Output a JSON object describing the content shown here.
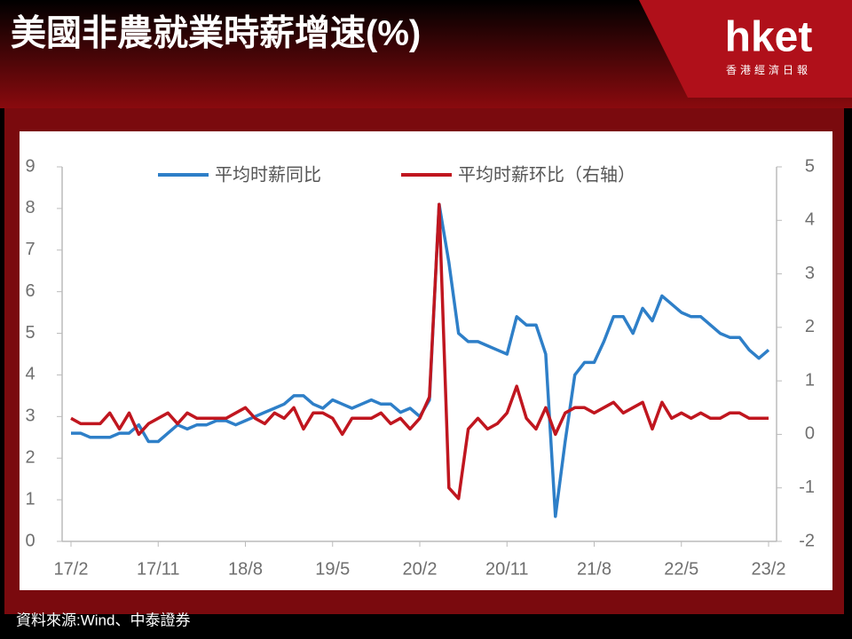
{
  "brand": {
    "name": "hket",
    "subtitle": "香港經濟日報"
  },
  "chart_data": {
    "type": "line",
    "title": "美國非農就業時薪增速(%)",
    "source": "資料來源:Wind、中泰證券",
    "x": [
      "17/2",
      null,
      null,
      null,
      null,
      null,
      null,
      null,
      null,
      "17/11",
      null,
      null,
      null,
      null,
      null,
      null,
      null,
      null,
      "18/8",
      null,
      null,
      null,
      null,
      null,
      null,
      null,
      null,
      "19/5",
      null,
      null,
      null,
      null,
      null,
      null,
      null,
      null,
      "20/2",
      null,
      null,
      null,
      null,
      null,
      null,
      null,
      null,
      "20/11",
      null,
      null,
      null,
      null,
      null,
      null,
      null,
      null,
      "21/8",
      null,
      null,
      null,
      null,
      null,
      null,
      null,
      null,
      "22/5",
      null,
      null,
      null,
      null,
      null,
      null,
      null,
      null,
      "23/2"
    ],
    "series": [
      {
        "name": "平均时薪同比",
        "color": "#2e7fc8",
        "values": [
          2.6,
          2.6,
          2.5,
          2.5,
          2.5,
          2.6,
          2.6,
          2.8,
          2.4,
          2.4,
          2.6,
          2.8,
          2.7,
          2.8,
          2.8,
          2.9,
          2.9,
          2.8,
          2.9,
          3.0,
          3.1,
          3.2,
          3.3,
          3.5,
          3.5,
          3.3,
          3.2,
          3.4,
          3.3,
          3.2,
          3.3,
          3.4,
          3.3,
          3.3,
          3.1,
          3.2,
          3.0,
          3.4,
          8.1,
          6.7,
          5.0,
          4.8,
          4.8,
          4.7,
          4.6,
          4.5,
          5.4,
          5.2,
          5.2,
          4.5,
          0.6,
          2.4,
          4.0,
          4.3,
          4.3,
          4.8,
          5.4,
          5.4,
          5.0,
          5.6,
          5.3,
          5.9,
          5.7,
          5.5,
          5.4,
          5.4,
          5.2,
          5.0,
          4.9,
          4.9,
          4.6,
          4.4,
          4.6
        ]
      },
      {
        "name": "平均时薪环比（右轴）",
        "color": "#c0161f",
        "axis": "y2",
        "values": [
          0.3,
          0.2,
          0.2,
          0.2,
          0.4,
          0.1,
          0.4,
          0.0,
          0.2,
          0.3,
          0.4,
          0.2,
          0.4,
          0.3,
          0.3,
          0.3,
          0.3,
          0.4,
          0.5,
          0.3,
          0.2,
          0.4,
          0.3,
          0.5,
          0.1,
          0.4,
          0.4,
          0.3,
          0.0,
          0.3,
          0.3,
          0.3,
          0.4,
          0.2,
          0.3,
          0.1,
          0.3,
          0.7,
          4.3,
          -1.0,
          -1.2,
          0.1,
          0.3,
          0.1,
          0.2,
          0.4,
          0.9,
          0.3,
          0.1,
          0.5,
          0.0,
          0.4,
          0.5,
          0.5,
          0.4,
          0.5,
          0.6,
          0.4,
          0.5,
          0.6,
          0.1,
          0.6,
          0.3,
          0.4,
          0.3,
          0.4,
          0.3,
          0.3,
          0.4,
          0.4,
          0.3,
          0.3,
          0.3
        ]
      }
    ],
    "ylim": [
      0,
      9
    ],
    "yticks": [
      0,
      1,
      2,
      3,
      4,
      5,
      6,
      7,
      8,
      9
    ],
    "y2lim": [
      -2,
      5
    ],
    "y2ticks": [
      -2,
      -1,
      0,
      1,
      2,
      3,
      4,
      5
    ],
    "legend": "top"
  }
}
